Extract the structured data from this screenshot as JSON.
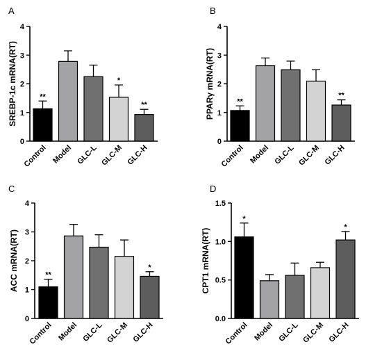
{
  "chart_data": [
    {
      "panel_label": "A",
      "type": "bar",
      "ylabel": "SREBP-1c mRNA(RT)",
      "ylim": [
        0,
        4
      ],
      "yticks": [
        "0",
        "1",
        "2",
        "3",
        "4"
      ],
      "categories": [
        "Control",
        "Model",
        "GLC-L",
        "GLC-M",
        "GLC-H"
      ],
      "values": [
        1.13,
        2.78,
        2.25,
        1.53,
        0.93
      ],
      "errors": [
        0.27,
        0.37,
        0.4,
        0.43,
        0.18
      ],
      "significance": [
        "**",
        "",
        "",
        "*",
        "**"
      ],
      "colors": [
        "#000000",
        "#a3a3a5",
        "#707070",
        "#d3d3d3",
        "#5d5d5d"
      ]
    },
    {
      "panel_label": "B",
      "type": "bar",
      "ylabel": "PPARγ mRNA(RT)",
      "ylim": [
        0,
        4
      ],
      "yticks": [
        "0",
        "1",
        "2",
        "3",
        "4"
      ],
      "categories": [
        "Control",
        "Model",
        "GLC-L",
        "GLC-M",
        "GLC-H"
      ],
      "values": [
        1.07,
        2.63,
        2.49,
        2.09,
        1.26
      ],
      "errors": [
        0.16,
        0.27,
        0.3,
        0.4,
        0.18
      ],
      "significance": [
        "**",
        "",
        "",
        "",
        "**"
      ],
      "colors": [
        "#000000",
        "#a3a3a5",
        "#707070",
        "#d3d3d3",
        "#5d5d5d"
      ]
    },
    {
      "panel_label": "C",
      "type": "bar",
      "ylabel": "ACC mRNA(RT)",
      "ylim": [
        0,
        4
      ],
      "yticks": [
        "0",
        "1",
        "2",
        "3",
        "4"
      ],
      "categories": [
        "Control",
        "Model",
        "GLC-L",
        "GLC-M",
        "GLC-H"
      ],
      "values": [
        1.1,
        2.86,
        2.47,
        2.15,
        1.46
      ],
      "errors": [
        0.26,
        0.4,
        0.43,
        0.57,
        0.16
      ],
      "significance": [
        "**",
        "",
        "",
        "",
        "*"
      ],
      "colors": [
        "#000000",
        "#a3a3a5",
        "#707070",
        "#d3d3d3",
        "#5d5d5d"
      ]
    },
    {
      "panel_label": "D",
      "type": "bar",
      "ylabel": "CPT1 mRNA(RT)",
      "ylim": [
        0,
        1.5
      ],
      "yticks": [
        "0.0",
        "0.5",
        "1.0",
        "1.5"
      ],
      "categories": [
        "Control",
        "Model",
        "GLC-L",
        "GLC-M",
        "GLC-H"
      ],
      "values": [
        1.06,
        0.49,
        0.56,
        0.66,
        1.02
      ],
      "errors": [
        0.18,
        0.08,
        0.16,
        0.07,
        0.11
      ],
      "significance": [
        "*",
        "",
        "",
        "",
        "*"
      ],
      "colors": [
        "#000000",
        "#a3a3a5",
        "#707070",
        "#d3d3d3",
        "#5d5d5d"
      ]
    }
  ]
}
